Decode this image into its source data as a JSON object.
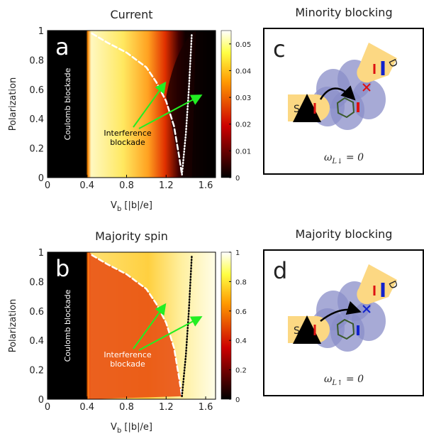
{
  "chart_data": [
    {
      "type": "heatmap",
      "title": "Current",
      "panel_label": "a",
      "xlabel": {
        "text": "V",
        "subscript": "b",
        "suffix": " [|b|/e]"
      },
      "ylabel": "Polarization",
      "xlim": [
        0,
        1.7
      ],
      "xticks": [
        0,
        0.4,
        0.8,
        1.2,
        1.6
      ],
      "ylim": [
        0,
        1
      ],
      "yticks": [
        0,
        0.2,
        0.4,
        0.6,
        0.8,
        1
      ],
      "clim": [
        0,
        0.055
      ],
      "cticks": [
        0,
        0.01,
        0.02,
        0.03,
        0.04,
        0.05
      ],
      "annotations": [
        "Coulomb blockade",
        "Interference",
        "blockade"
      ],
      "series": [
        {
          "name": "dashed",
          "x": [
            0.45,
            0.6,
            0.8,
            1.0,
            1.1,
            1.2,
            1.28,
            1.33,
            1.36
          ],
          "values": [
            0.98,
            0.92,
            0.85,
            0.75,
            0.65,
            0.52,
            0.35,
            0.15,
            0.02
          ]
        },
        {
          "name": "dotted",
          "x": [
            1.36,
            1.4,
            1.43,
            1.46
          ],
          "values": [
            0.02,
            0.3,
            0.6,
            0.98
          ]
        }
      ]
    },
    {
      "type": "heatmap",
      "title": "Majority spin",
      "panel_label": "b",
      "xlabel": {
        "text": "V",
        "subscript": "b",
        "suffix": " [|b|/e]"
      },
      "ylabel": "Polarization",
      "xlim": [
        0,
        1.7
      ],
      "xticks": [
        0,
        0.4,
        0.8,
        1.2,
        1.6
      ],
      "ylim": [
        0,
        1
      ],
      "yticks": [
        0,
        0.2,
        0.4,
        0.6,
        0.8,
        1
      ],
      "clim": [
        0,
        1
      ],
      "cticks": [
        0,
        0.2,
        0.4,
        0.6,
        0.8,
        1
      ],
      "annotations": [
        "Coulomb blockade",
        "Interference",
        "blockade"
      ],
      "series": [
        {
          "name": "dashed",
          "x": [
            0.45,
            0.6,
            0.8,
            1.0,
            1.1,
            1.2,
            1.28,
            1.33,
            1.36
          ],
          "values": [
            0.98,
            0.92,
            0.85,
            0.75,
            0.65,
            0.52,
            0.35,
            0.15,
            0.02
          ]
        },
        {
          "name": "dotted",
          "x": [
            1.36,
            1.4,
            1.43,
            1.46
          ],
          "values": [
            0.02,
            0.3,
            0.6,
            0.98
          ]
        }
      ]
    }
  ],
  "diagrams": [
    {
      "title": "Minority blocking",
      "panel_label": "c",
      "source": "S",
      "drain": "D",
      "formula": {
        "text": "ω",
        "subscript": "L↓",
        "suffix": " = 0"
      }
    },
    {
      "title": "Majority blocking",
      "panel_label": "d",
      "source": "S",
      "drain": "D",
      "formula": {
        "text": "ω",
        "subscript": "L↑",
        "suffix": " = 0"
      }
    }
  ]
}
